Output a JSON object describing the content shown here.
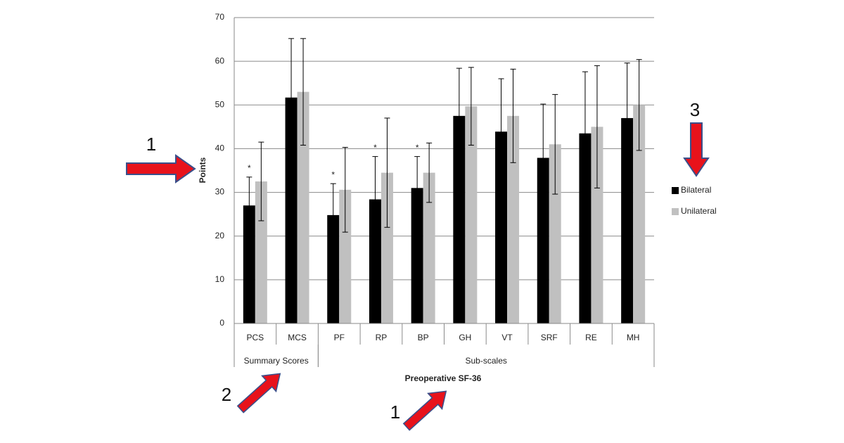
{
  "chart_data": {
    "type": "bar",
    "y_label": "Points",
    "x_label": "Preoperative SF-36",
    "categories": [
      "PCS",
      "MCS",
      "PF",
      "RP",
      "BP",
      "GH",
      "VT",
      "SRF",
      "RE",
      "MH"
    ],
    "groups": [
      {
        "label": "Summary Scores",
        "span": 2
      },
      {
        "label": "Sub-scales",
        "span": 8
      }
    ],
    "series": [
      {
        "name": "Bilateral",
        "color": "#000000",
        "values": [
          27,
          51.7,
          24.8,
          28.4,
          31,
          47.5,
          43.9,
          37.9,
          43.5,
          47
        ],
        "errors": [
          6.5,
          13.5,
          7.2,
          9.8,
          7.2,
          10.9,
          12.1,
          12.3,
          14.1,
          12.6
        ]
      },
      {
        "name": "Unilateral",
        "color": "#c0c0c0",
        "values": [
          32.5,
          53,
          30.6,
          34.5,
          34.5,
          49.7,
          47.5,
          41,
          45,
          50
        ],
        "errors": [
          9,
          12.2,
          9.7,
          12.5,
          6.8,
          8.9,
          10.7,
          11.4,
          14,
          10.4
        ]
      }
    ],
    "significance_marker": "*",
    "significant": [
      true,
      false,
      true,
      true,
      true,
      false,
      false,
      false,
      false,
      false
    ],
    "ylim": [
      0,
      70
    ],
    "yticks": [
      0,
      10,
      20,
      30,
      40,
      50,
      60,
      70
    ],
    "grid": true,
    "legend": "right",
    "callouts": [
      "1",
      "2",
      "1",
      "3"
    ]
  }
}
